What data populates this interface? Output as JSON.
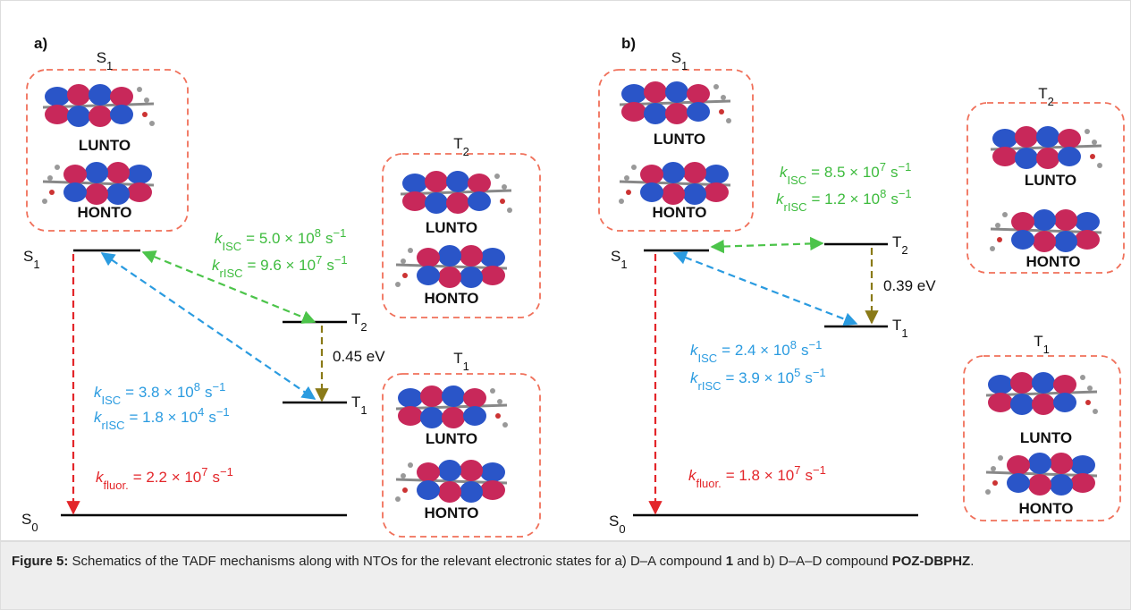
{
  "panels": [
    {
      "label": "a)",
      "boxes": [
        {
          "title": {
            "main": "S",
            "sub": "1"
          },
          "lunto": "LUNTO",
          "honto": "HONTO"
        },
        {
          "title": {
            "main": "T",
            "sub": "2"
          },
          "lunto": "LUNTO",
          "honto": "HONTO"
        },
        {
          "title": {
            "main": "T",
            "sub": "1"
          },
          "lunto": "LUNTO",
          "honto": "HONTO"
        }
      ],
      "levels": [
        {
          "main": "S",
          "sub": "1"
        },
        {
          "main": "T",
          "sub": "2"
        },
        {
          "main": "T",
          "sub": "1"
        },
        {
          "main": "S",
          "sub": "0"
        }
      ],
      "gap": "0.45 eV",
      "rates": [
        {
          "color": "#3dbb3d",
          "symbol": "k",
          "sub": "ISC",
          "equals": "= 5.0 × 10",
          "exp": "8",
          "unit": "s",
          "unit_exp": "−1"
        },
        {
          "color": "#3dbb3d",
          "symbol": "k",
          "sub": "rISC",
          "equals": "= 9.6 × 10",
          "exp": "7",
          "unit": "s",
          "unit_exp": "−1"
        },
        {
          "color": "#2a9be0",
          "symbol": "k",
          "sub": "ISC",
          "equals": "= 3.8 × 10",
          "exp": "8",
          "unit": "s",
          "unit_exp": "−1"
        },
        {
          "color": "#2a9be0",
          "symbol": "k",
          "sub": "rISC",
          "equals": "= 1.8 × 10",
          "exp": "4",
          "unit": "s",
          "unit_exp": "−1"
        },
        {
          "color": "#e3262a",
          "symbol": "k",
          "sub": "fluor.",
          "equals": "= 2.2 × 10",
          "exp": "7",
          "unit": "s",
          "unit_exp": "−1"
        }
      ]
    },
    {
      "label": "b)",
      "boxes": [
        {
          "title": {
            "main": "S",
            "sub": "1"
          },
          "lunto": "LUNTO",
          "honto": "HONTO"
        },
        {
          "title": {
            "main": "T",
            "sub": "2"
          },
          "lunto": "LUNTO",
          "honto": "HONTO"
        },
        {
          "title": {
            "main": "T",
            "sub": "1"
          },
          "lunto": "LUNTO",
          "honto": "HONTO"
        }
      ],
      "levels": [
        {
          "main": "S",
          "sub": "1"
        },
        {
          "main": "T",
          "sub": "2"
        },
        {
          "main": "T",
          "sub": "1"
        },
        {
          "main": "S",
          "sub": "0"
        }
      ],
      "gap": "0.39 eV",
      "rates": [
        {
          "color": "#3dbb3d",
          "symbol": "k",
          "sub": "ISC",
          "equals": "= 8.5 × 10",
          "exp": "7",
          "unit": "s",
          "unit_exp": "−1"
        },
        {
          "color": "#3dbb3d",
          "symbol": "k",
          "sub": "rISC",
          "equals": "= 1.2 × 10",
          "exp": "8",
          "unit": "s",
          "unit_exp": "−1"
        },
        {
          "color": "#2a9be0",
          "symbol": "k",
          "sub": "ISC",
          "equals": "= 2.4 × 10",
          "exp": "8",
          "unit": "s",
          "unit_exp": "−1"
        },
        {
          "color": "#2a9be0",
          "symbol": "k",
          "sub": "rISC",
          "equals": "= 3.9 × 10",
          "exp": "5",
          "unit": "s",
          "unit_exp": "−1"
        },
        {
          "color": "#e3262a",
          "symbol": "k",
          "sub": "fluor.",
          "equals": "= 1.8 × 10",
          "exp": "7",
          "unit": "s",
          "unit_exp": "−1"
        }
      ]
    }
  ],
  "caption": {
    "label": "Figure 5:",
    "text1": "Schematics of the TADF mechanisms along with NTOs for the relevant electronic states for a) D–A compound",
    "compound1": "1",
    "text2": "and b) D–A–D compound",
    "compound2": "POZ-DBPHZ",
    "end": "."
  }
}
